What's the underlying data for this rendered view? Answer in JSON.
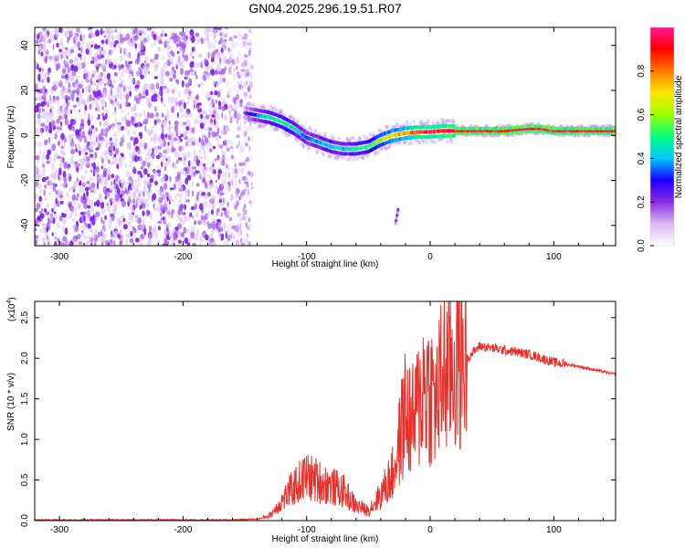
{
  "figure": {
    "title": "GN04.2025.296.19.51.R07"
  },
  "chart_data": [
    {
      "type": "heatmap",
      "name": "spectrogram",
      "xlabel": "Height of straight line (km)",
      "ylabel": "Frequency (Hz)",
      "xlim": [
        -320,
        150
      ],
      "ylim": [
        -49,
        48
      ],
      "xticks": [
        -300,
        -200,
        -100,
        0,
        100
      ],
      "xtick_labels": [
        "-300",
        "-200",
        "-100",
        "0",
        "100"
      ],
      "yticks": [
        -40,
        -20,
        0,
        20,
        40
      ],
      "ytick_labels": [
        "-40",
        "-20",
        "0",
        "20",
        "40"
      ],
      "colorbar": {
        "label": "Normalized spectral amplitude",
        "range": [
          0,
          1
        ],
        "ticks": [
          0.0,
          0.2,
          0.4,
          0.6,
          0.8
        ],
        "tick_labels": [
          "0.0",
          "0.2",
          "0.4",
          "0.6",
          "0.8"
        ],
        "colormap": [
          "#ffffff",
          "#d8b8f0",
          "#8a2be2",
          "#1a00ff",
          "#00c8ff",
          "#00ff80",
          "#9cff00",
          "#ffe600",
          "#ff7a00",
          "#ff0000",
          "#ff1493"
        ]
      },
      "noise_region_x": [
        -320,
        -150
      ],
      "signal_trace": {
        "x": [
          -150,
          -140,
          -130,
          -120,
          -110,
          -100,
          -90,
          -80,
          -70,
          -60,
          -50,
          -40,
          -30,
          -20,
          -10,
          0,
          10,
          20,
          40,
          60,
          80,
          90,
          100,
          120,
          150
        ],
        "y": [
          10,
          9,
          8,
          6,
          3,
          -1,
          -3,
          -5,
          -6,
          -6,
          -5,
          -2,
          0,
          1,
          1.5,
          1.5,
          2,
          2,
          2,
          2,
          3,
          3,
          2,
          2,
          2
        ],
        "amplitude": [
          0.2,
          0.35,
          0.45,
          0.5,
          0.45,
          0.35,
          0.4,
          0.45,
          0.4,
          0.45,
          0.5,
          0.6,
          0.7,
          0.75,
          0.85,
          0.9,
          0.9,
          0.95,
          0.95,
          0.95,
          1.0,
          0.95,
          0.95,
          0.95,
          0.95
        ]
      },
      "annotations": [
        {
          "type": "stray-dots",
          "x": -28,
          "y_range": [
            -39,
            -33
          ]
        }
      ]
    },
    {
      "type": "line",
      "name": "snr",
      "xlabel": "Height of straight line (km)",
      "ylabel": "SNR (10 * v/v)",
      "y_multiplier_label": "(x10",
      "y_multiplier_exponent": "4",
      "y_multiplier_close": ")",
      "xlim": [
        -320,
        150
      ],
      "ylim": [
        0,
        2.7
      ],
      "xticks": [
        -300,
        -200,
        -100,
        0,
        100
      ],
      "xtick_labels": [
        "-300",
        "-200",
        "-100",
        "0",
        "100"
      ],
      "yticks": [
        0.0,
        0.5,
        1.0,
        1.5,
        2.0,
        2.5
      ],
      "ytick_labels": [
        "0.0",
        "0.5",
        "1.0",
        "1.5",
        "2.0",
        "2.5"
      ],
      "series": [
        {
          "name": "SNR",
          "color": "#e8302a",
          "x": [
            -320,
            -250,
            -200,
            -160,
            -140,
            -130,
            -120,
            -110,
            -100,
            -90,
            -80,
            -70,
            -60,
            -50,
            -40,
            -30,
            -25,
            -20,
            -15,
            -10,
            -5,
            0,
            5,
            10,
            20,
            30,
            40,
            60,
            80,
            90,
            100,
            120,
            150
          ],
          "y": [
            0.01,
            0.01,
            0.01,
            0.01,
            0.02,
            0.05,
            0.2,
            0.35,
            0.45,
            0.4,
            0.35,
            0.3,
            0.15,
            0.12,
            0.3,
            0.55,
            0.9,
            1.3,
            1.1,
            1.3,
            1.6,
            1.5,
            1.35,
            1.7,
            1.8,
            2.0,
            2.15,
            2.1,
            2.05,
            2.0,
            1.95,
            1.9,
            1.8
          ]
        }
      ]
    }
  ]
}
